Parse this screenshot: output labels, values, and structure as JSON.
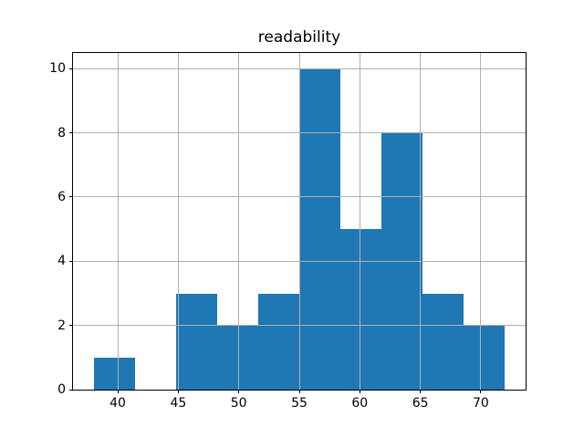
{
  "chart_data": {
    "type": "histogram",
    "title": "readability",
    "xlabel": "",
    "ylabel": "",
    "bin_edges": [
      38.0,
      41.4,
      44.8,
      48.2,
      51.6,
      55.0,
      58.4,
      61.8,
      65.2,
      68.6,
      72.0
    ],
    "counts": [
      1,
      0,
      3,
      2,
      3,
      10,
      5,
      8,
      3,
      2
    ],
    "xticks": [
      40,
      45,
      50,
      55,
      60,
      65,
      70
    ],
    "yticks": [
      0,
      2,
      4,
      6,
      8,
      10
    ],
    "xlim": [
      36.3,
      73.7
    ],
    "ylim": [
      0,
      10.5
    ],
    "grid": true,
    "grid_over_bars": true,
    "legend_position": "none",
    "bar_color": "#1f77b4",
    "grid_color": "#b0b0b0",
    "axis_color": "#000000",
    "background_color": "#ffffff"
  }
}
